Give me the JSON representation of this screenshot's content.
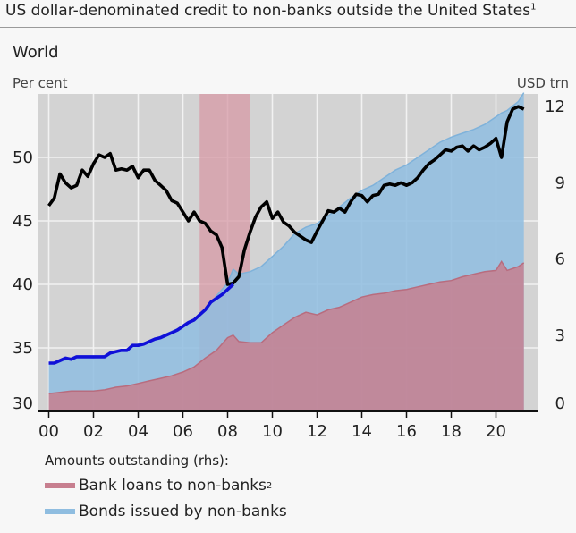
{
  "title": "US dollar-denominated credit to non-banks outside the United States",
  "title_footnote": "1",
  "subtitle": "World",
  "left_unit": "Per cent",
  "right_unit": "USD trn",
  "legend": {
    "heading": "Amounts outstanding (rhs):",
    "loans_label": "Bank loans to non-banks",
    "loans_footnote": "2",
    "bonds_label": "Bonds issued by non-banks"
  },
  "colors": {
    "loans": "#c77f8f",
    "bonds": "#8fbde0",
    "line_black": "#000000",
    "line_blue": "#1010d8",
    "shade": "#d79aa6",
    "plot_bg": "#d3d3d3",
    "grid": "#f2f2f2"
  },
  "chart_data": {
    "type": "area",
    "x_ticks": [
      {
        "x": 2000,
        "label": "00"
      },
      {
        "x": 2002,
        "label": "02"
      },
      {
        "x": 2004,
        "label": "04"
      },
      {
        "x": 2006,
        "label": "06"
      },
      {
        "x": 2008,
        "label": "08"
      },
      {
        "x": 2010,
        "label": "10"
      },
      {
        "x": 2012,
        "label": "12"
      },
      {
        "x": 2014,
        "label": "14"
      },
      {
        "x": 2016,
        "label": "16"
      },
      {
        "x": 2018,
        "label": "18"
      },
      {
        "x": 2020,
        "label": "20"
      }
    ],
    "xlim": [
      1999.5,
      2021.9
    ],
    "y_left": {
      "ylim": [
        30,
        55
      ],
      "ticks": [
        30,
        35,
        40,
        45,
        50
      ],
      "label": "Per cent"
    },
    "y_right": {
      "ylim": [
        0,
        12.5
      ],
      "ticks": [
        0,
        3,
        6,
        9,
        12
      ],
      "label": "USD trn"
    },
    "shaded_period": [
      2006.75,
      2009.0
    ],
    "series": [
      {
        "name": "Bank loans to non-banks",
        "axis": "right",
        "kind": "area",
        "x": [
          2000,
          2000.5,
          2001,
          2001.5,
          2002,
          2002.5,
          2003,
          2003.5,
          2004,
          2004.5,
          2005,
          2005.5,
          2006,
          2006.5,
          2007,
          2007.5,
          2008,
          2008.25,
          2008.5,
          2009,
          2009.5,
          2010,
          2010.5,
          2011,
          2011.5,
          2012,
          2012.5,
          2013,
          2013.5,
          2014,
          2014.5,
          2015,
          2015.5,
          2016,
          2016.5,
          2017,
          2017.5,
          2018,
          2018.5,
          2019,
          2019.5,
          2020,
          2020.25,
          2020.5,
          2021,
          2021.25
        ],
        "y": [
          0.7,
          0.75,
          0.8,
          0.8,
          0.8,
          0.85,
          0.95,
          1.0,
          1.1,
          1.2,
          1.3,
          1.4,
          1.55,
          1.75,
          2.1,
          2.4,
          2.9,
          3.0,
          2.75,
          2.7,
          2.7,
          3.1,
          3.4,
          3.7,
          3.9,
          3.8,
          4.0,
          4.1,
          4.3,
          4.5,
          4.6,
          4.65,
          4.75,
          4.8,
          4.9,
          5.0,
          5.1,
          5.15,
          5.3,
          5.4,
          5.5,
          5.55,
          5.9,
          5.55,
          5.7,
          5.85
        ]
      },
      {
        "name": "Bonds issued by non-banks",
        "axis": "right",
        "kind": "area",
        "x": [
          2000,
          2000.5,
          2001,
          2001.5,
          2002,
          2002.5,
          2003,
          2003.5,
          2004,
          2004.5,
          2005,
          2005.5,
          2006,
          2006.5,
          2007,
          2007.5,
          2008,
          2008.25,
          2008.5,
          2009,
          2009.5,
          2010,
          2010.5,
          2011,
          2011.5,
          2012,
          2012.5,
          2013,
          2013.5,
          2014,
          2014.5,
          2015,
          2015.5,
          2016,
          2016.5,
          2017,
          2017.5,
          2018,
          2018.5,
          2019,
          2019.5,
          2020,
          2020.25,
          2020.5,
          2021,
          2021.25
        ],
        "y": [
          1.9,
          1.95,
          2.1,
          2.15,
          2.1,
          2.2,
          2.35,
          2.45,
          2.65,
          2.75,
          2.95,
          3.15,
          3.35,
          3.6,
          4.0,
          4.55,
          5.05,
          5.6,
          5.4,
          5.5,
          5.7,
          6.1,
          6.5,
          7.0,
          7.25,
          7.4,
          7.7,
          8.05,
          8.4,
          8.7,
          8.9,
          9.2,
          9.5,
          9.7,
          10.0,
          10.3,
          10.6,
          10.8,
          10.95,
          11.1,
          11.3,
          11.6,
          11.75,
          11.85,
          12.2,
          12.55
        ]
      },
      {
        "name": "",
        "axis": "left",
        "kind": "line",
        "color": "black",
        "x": [
          2000,
          2000.25,
          2000.5,
          2000.75,
          2001,
          2001.25,
          2001.5,
          2001.75,
          2002,
          2002.25,
          2002.5,
          2002.75,
          2003,
          2003.25,
          2003.5,
          2003.75,
          2004,
          2004.25,
          2004.5,
          2004.75,
          2005,
          2005.25,
          2005.5,
          2005.75,
          2006,
          2006.25,
          2006.5,
          2006.75,
          2007,
          2007.25,
          2007.5,
          2007.75,
          2008,
          2008.25,
          2008.5,
          2008.75,
          2009,
          2009.25,
          2009.5,
          2009.75,
          2010,
          2010.25,
          2010.5,
          2010.75,
          2011,
          2011.25,
          2011.5,
          2011.75,
          2012,
          2012.25,
          2012.5,
          2012.75,
          2013,
          2013.25,
          2013.5,
          2013.75,
          2014,
          2014.25,
          2014.5,
          2014.75,
          2015,
          2015.25,
          2015.5,
          2015.75,
          2016,
          2016.25,
          2016.5,
          2016.75,
          2017,
          2017.25,
          2017.5,
          2017.75,
          2018,
          2018.25,
          2018.5,
          2018.75,
          2019,
          2019.25,
          2019.5,
          2019.75,
          2020,
          2020.25,
          2020.5,
          2020.75,
          2021,
          2021.25
        ],
        "y": [
          46.2,
          46.8,
          48.7,
          48.0,
          47.6,
          47.8,
          49.0,
          48.5,
          49.5,
          50.2,
          50.0,
          50.3,
          49.0,
          49.1,
          49.0,
          49.3,
          48.4,
          49.0,
          49.0,
          48.2,
          47.8,
          47.4,
          46.6,
          46.4,
          45.7,
          45.0,
          45.7,
          45.0,
          44.8,
          44.2,
          43.9,
          42.9,
          40.0,
          40.1,
          40.6,
          42.7,
          44.1,
          45.3,
          46.1,
          46.5,
          45.2,
          45.7,
          44.9,
          44.6,
          44.1,
          43.8,
          43.5,
          43.3,
          44.2,
          45.0,
          45.8,
          45.7,
          46.0,
          45.7,
          46.5,
          47.1,
          47.0,
          46.5,
          47.0,
          47.1,
          47.8,
          47.9,
          47.8,
          48.0,
          47.8,
          48.0,
          48.4,
          49.0,
          49.5,
          49.8,
          50.2,
          50.6,
          50.5,
          50.8,
          50.9,
          50.5,
          50.9,
          50.6,
          50.8,
          51.1,
          51.5,
          50.0,
          52.8,
          53.8,
          54.0,
          53.8
        ]
      },
      {
        "name": "",
        "axis": "left",
        "kind": "line",
        "color": "blue",
        "x": [
          2000,
          2000.25,
          2000.5,
          2000.75,
          2001,
          2001.25,
          2001.5,
          2001.75,
          2002,
          2002.25,
          2002.5,
          2002.75,
          2003,
          2003.25,
          2003.5,
          2003.75,
          2004,
          2004.25,
          2004.5,
          2004.75,
          2005,
          2005.25,
          2005.5,
          2005.75,
          2006,
          2006.25,
          2006.5,
          2006.75,
          2007,
          2007.25,
          2007.5,
          2007.75,
          2008,
          2008.25
        ],
        "y": [
          33.8,
          33.8,
          34.0,
          34.2,
          34.1,
          34.3,
          34.3,
          34.3,
          34.3,
          34.3,
          34.3,
          34.6,
          34.7,
          34.8,
          34.8,
          35.2,
          35.2,
          35.3,
          35.5,
          35.7,
          35.8,
          36.0,
          36.2,
          36.4,
          36.7,
          37.0,
          37.2,
          37.6,
          38.0,
          38.6,
          38.9,
          39.2,
          39.6,
          40.0
        ]
      }
    ]
  }
}
